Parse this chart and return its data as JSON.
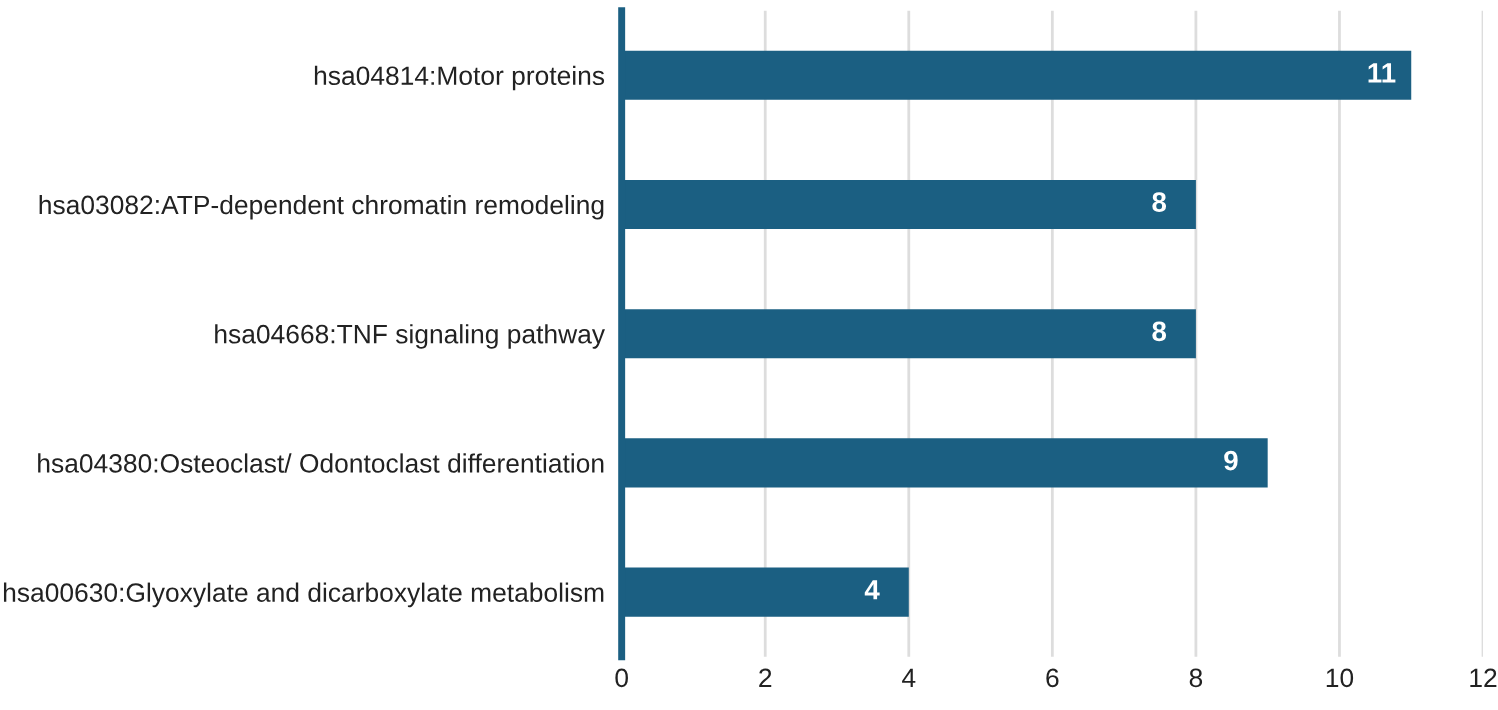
{
  "chart_data": {
    "type": "bar",
    "orientation": "horizontal",
    "categories": [
      "hsa04814:Motor proteins",
      "hsa03082:ATP-dependent chromatin remodeling",
      "hsa04668:TNF signaling pathway",
      "hsa04380:Osteoclast/ Odontoclast differentiation",
      "hsa00630:Glyoxylate and dicarboxylate metabolism"
    ],
    "values": [
      11,
      8,
      8,
      9,
      4
    ],
    "color": "#1b5f82",
    "xlim": [
      0,
      12
    ],
    "xticks": [
      0,
      2,
      4,
      6,
      8,
      10,
      12
    ],
    "grid": "x",
    "data_labels": true,
    "legend": false
  }
}
